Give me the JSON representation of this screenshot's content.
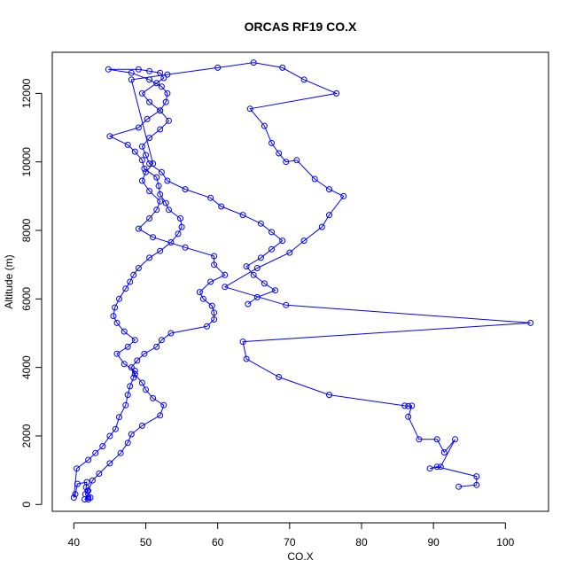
{
  "chart_data": {
    "type": "line",
    "title": "ORCAS RF19 CO.X",
    "xlabel": "CO.X",
    "ylabel": "Altitude (m)",
    "xlim": [
      37.0,
      106.0
    ],
    "ylim": [
      -200,
      13200
    ],
    "xticks": [
      40,
      50,
      60,
      70,
      80,
      90,
      100
    ],
    "yticks": [
      0,
      2000,
      4000,
      6000,
      8000,
      10000,
      12000
    ],
    "grid": false,
    "legend": "none",
    "markers": "open-circle",
    "series": [
      {
        "color": "#0000ff",
        "x": [
          41.5,
          42.0,
          41.6,
          41.9,
          41.7,
          41.8,
          40.5,
          40.2,
          40.0,
          40.4,
          42.0,
          43.0,
          44.0,
          45.0,
          45.8,
          46.3,
          47.2,
          47.5,
          47.8,
          48.3,
          48.5,
          47.0,
          46.0,
          47.5,
          48.5,
          47.0,
          46.0,
          45.5,
          45.7,
          46.3,
          47.2,
          47.8,
          48.3,
          49.0,
          50.5,
          52.0,
          53.5,
          54.5,
          55.0,
          54.8,
          53.2,
          52.8,
          52.0,
          51.8,
          51.5,
          49.8,
          49.5,
          48.5,
          47.5,
          45.0,
          49.0,
          50.2,
          52.0,
          52.8,
          53.0,
          52.2,
          50.5,
          48.0,
          44.8,
          49.0,
          50.5,
          52.0,
          52.5,
          51.5,
          49.5,
          50.5,
          52.0,
          53.2,
          52.0,
          50.5,
          49.5,
          50.0,
          50.5,
          52.2,
          53.0,
          55.5,
          59.0,
          60.5,
          63.5,
          66.0,
          67.5,
          69.0,
          67.5,
          66.0,
          64.0,
          65.0,
          66.5,
          68.0,
          65.5,
          64.2
        ],
        "y": [
          150,
          200,
          300,
          400,
          500,
          650,
          600,
          300,
          200,
          1050,
          1300,
          1500,
          1700,
          2000,
          2200,
          2550,
          2900,
          3200,
          3450,
          3700,
          3900,
          4100,
          4400,
          4600,
          4800,
          5050,
          5300,
          5500,
          5750,
          6000,
          6300,
          6500,
          6700,
          6900,
          7200,
          7400,
          7650,
          7900,
          8100,
          8350,
          8600,
          8800,
          9050,
          9300,
          9550,
          9800,
          10050,
          10300,
          10500,
          10750,
          11000,
          11250,
          11500,
          11750,
          12000,
          12200,
          12400,
          12600,
          12700,
          12700,
          12650,
          12600,
          12450,
          12300,
          12000,
          11750,
          11500,
          11200,
          10950,
          10700,
          10450,
          10200,
          9950,
          9700,
          9450,
          9200,
          8950,
          8700,
          8450,
          8200,
          7950,
          7700,
          7450,
          7200,
          6950,
          6700,
          6450,
          6250,
          6050,
          5850
        ]
      },
      {
        "color": "#0000ff",
        "x": [
          42.0,
          42.3,
          42.0,
          42.6,
          43.5,
          45.0,
          46.5,
          47.5,
          48.0,
          49.5,
          52.0,
          52.5,
          51.0,
          50.0,
          49.5,
          48.5,
          48.0,
          48.8,
          49.8,
          51.5,
          52.2,
          53.5,
          58.5,
          59.5,
          59.5,
          59.2,
          58.0,
          57.5,
          59.0,
          61.0,
          59.5,
          59.5,
          55.5,
          51.0,
          49.0,
          50.5,
          51.5,
          52.0,
          50.5,
          49.5,
          50.0,
          51.0,
          48.0,
          53.0,
          60.0,
          65.0,
          69.0,
          72.0,
          76.5,
          64.5,
          66.5,
          67.5,
          68.5,
          69.5,
          71.0,
          73.5,
          75.5,
          77.5,
          75.5,
          74.5,
          72.0,
          70.0,
          65.5,
          61.0,
          69.5,
          103.5,
          63.5,
          64.0,
          68.5,
          75.5,
          86.0,
          86.5,
          87.0,
          86.5,
          88.0,
          90.5,
          91.5,
          93.0,
          91.0,
          89.5,
          90.5,
          96.0,
          96.0,
          93.5
        ],
        "y": [
          150,
          200,
          400,
          700,
          900,
          1200,
          1500,
          1800,
          2050,
          2300,
          2600,
          2900,
          3100,
          3350,
          3550,
          3800,
          4000,
          4200,
          4400,
          4600,
          4800,
          5000,
          5200,
          5400,
          5600,
          5800,
          6000,
          6200,
          6500,
          6700,
          7000,
          7250,
          7500,
          7800,
          8050,
          8350,
          8600,
          8850,
          9150,
          9450,
          9700,
          9950,
          12400,
          12550,
          12750,
          12900,
          12750,
          12400,
          12000,
          11550,
          11050,
          10550,
          10250,
          10000,
          10050,
          9500,
          9200,
          9000,
          8450,
          8100,
          7700,
          7350,
          6900,
          6350,
          5820,
          5300,
          4750,
          4250,
          3720,
          3200,
          2880,
          2870,
          2880,
          2560,
          1900,
          1900,
          1520,
          1900,
          1100,
          1050,
          1100,
          820,
          570,
          520
        ]
      }
    ]
  }
}
